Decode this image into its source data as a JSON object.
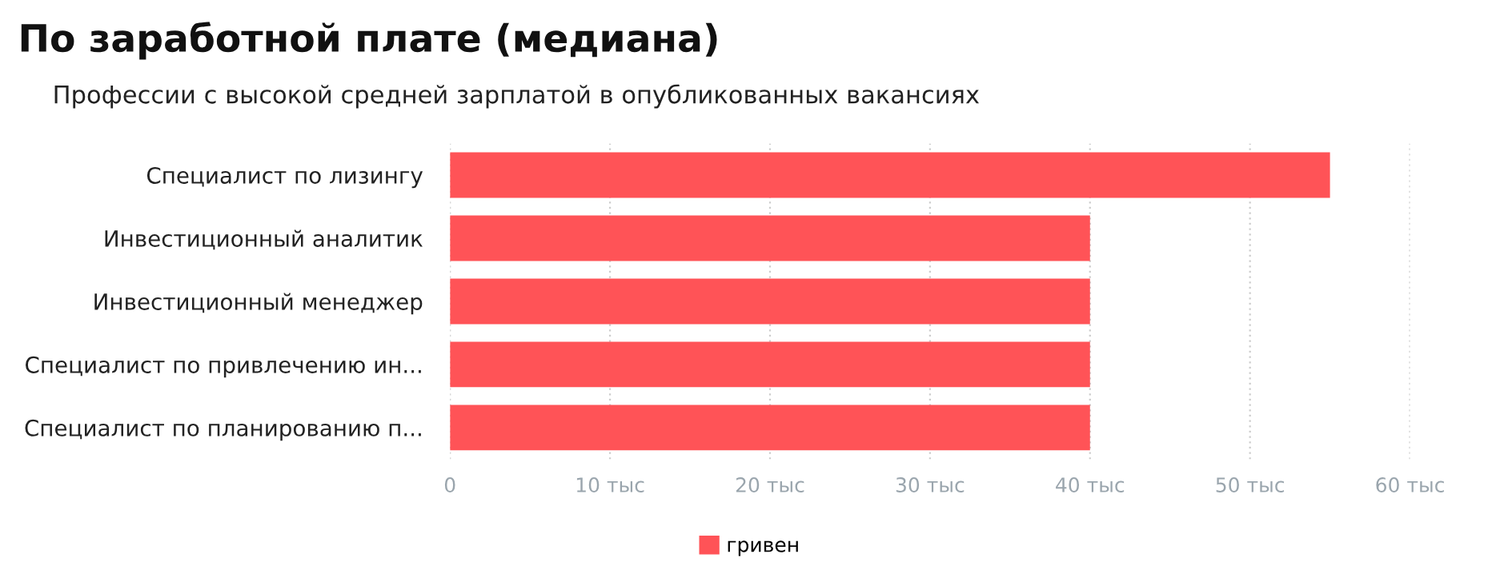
{
  "chart_data": {
    "type": "bar",
    "orientation": "horizontal",
    "title": "По заработной плате (медиана)",
    "subtitle": "Профессии с высокой средней зарплатой в опубликованных вакансиях",
    "categories": [
      "Специалист по лизингу",
      "Инвестиционный аналитик",
      "Инвестиционный менеджер",
      "Специалист по привлечению ин...",
      "Специалист по планированию п..."
    ],
    "series": [
      {
        "name": "гривен",
        "color": "#ff5357",
        "values": [
          55,
          40,
          40,
          40,
          40
        ]
      }
    ],
    "xlim": [
      0,
      60
    ],
    "xticks": [
      0,
      {
        "value": 10,
        "label": "10 тыс"
      },
      {
        "value": 20,
        "label": "20 тыс"
      },
      {
        "value": 30,
        "label": "30 тыс"
      },
      {
        "value": 40,
        "label": "40 тыс"
      },
      {
        "value": 50,
        "label": "50 тыс"
      },
      {
        "value": 60,
        "label": "60 тыс"
      }
    ],
    "grid": "x",
    "legend": "bottom"
  }
}
